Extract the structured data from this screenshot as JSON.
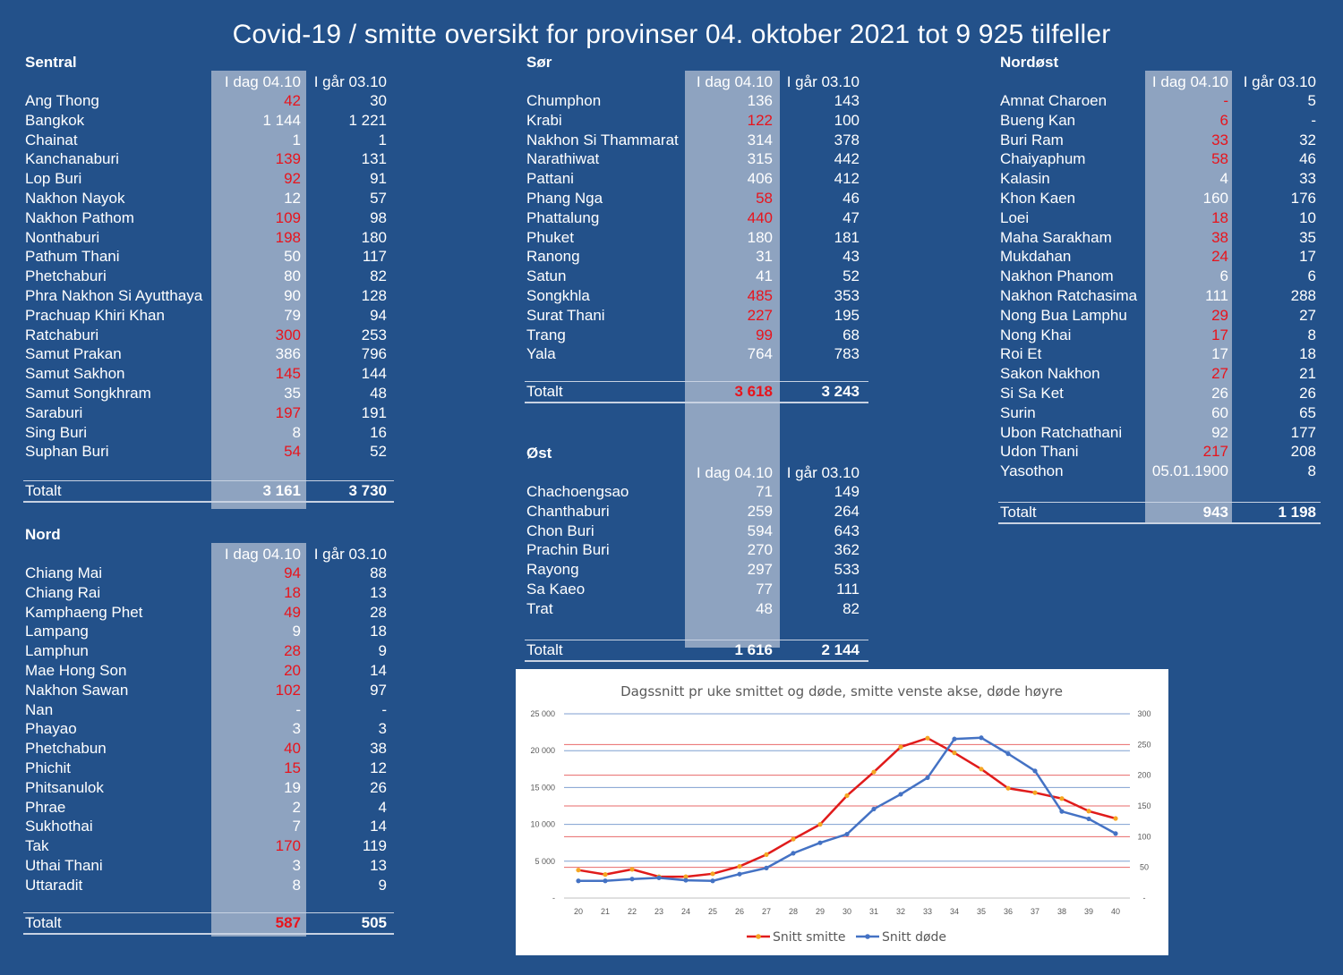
{
  "title": "Covid-19 / smitte oversikt for provinser 04. oktober 2021 tot 9 925 tilfeller",
  "columns": {
    "today": "I dag 04.10",
    "yesterday": "I går 03.10"
  },
  "total_label": "Totalt",
  "colors": {
    "background": "#23518a",
    "shade": "#8ea3c0",
    "increase": "#e8141c",
    "line_smitte": "#e01b1b",
    "line_dode": "#4472c4",
    "marker_smitte": "#f5a623"
  },
  "regions": {
    "sentral": {
      "name": "Sentral",
      "rows": [
        {
          "name": "Ang Thong",
          "today": "42",
          "yesterday": "30",
          "up": true
        },
        {
          "name": "Bangkok",
          "today": "1 144",
          "yesterday": "1 221",
          "up": false
        },
        {
          "name": "Chainat",
          "today": "1",
          "yesterday": "1",
          "up": false
        },
        {
          "name": "Kanchanaburi",
          "today": "139",
          "yesterday": "131",
          "up": true
        },
        {
          "name": "Lop Buri",
          "today": "92",
          "yesterday": "91",
          "up": true
        },
        {
          "name": "Nakhon Nayok",
          "today": "12",
          "yesterday": "57",
          "up": false
        },
        {
          "name": "Nakhon Pathom",
          "today": "109",
          "yesterday": "98",
          "up": true
        },
        {
          "name": "Nonthaburi",
          "today": "198",
          "yesterday": "180",
          "up": true
        },
        {
          "name": "Pathum Thani",
          "today": "50",
          "yesterday": "117",
          "up": false
        },
        {
          "name": "Phetchaburi",
          "today": "80",
          "yesterday": "82",
          "up": false
        },
        {
          "name": "Phra Nakhon Si Ayutthaya",
          "today": "90",
          "yesterday": "128",
          "up": false
        },
        {
          "name": "Prachuap Khiri Khan",
          "today": "79",
          "yesterday": "94",
          "up": false
        },
        {
          "name": "Ratchaburi",
          "today": "300",
          "yesterday": "253",
          "up": true
        },
        {
          "name": "Samut Prakan",
          "today": "386",
          "yesterday": "796",
          "up": false
        },
        {
          "name": "Samut Sakhon",
          "today": "145",
          "yesterday": "144",
          "up": true
        },
        {
          "name": "Samut Songkhram",
          "today": "35",
          "yesterday": "48",
          "up": false
        },
        {
          "name": "Saraburi",
          "today": "197",
          "yesterday": "191",
          "up": true
        },
        {
          "name": "Sing Buri",
          "today": "8",
          "yesterday": "16",
          "up": false
        },
        {
          "name": "Suphan Buri",
          "today": "54",
          "yesterday": "52",
          "up": true
        }
      ],
      "total": {
        "today": "3 161",
        "yesterday": "3 730",
        "up": false
      }
    },
    "nord": {
      "name": "Nord",
      "rows": [
        {
          "name": "Chiang Mai",
          "today": "94",
          "yesterday": "88",
          "up": true
        },
        {
          "name": "Chiang Rai",
          "today": "18",
          "yesterday": "13",
          "up": true
        },
        {
          "name": "Kamphaeng Phet",
          "today": "49",
          "yesterday": "28",
          "up": true
        },
        {
          "name": "Lampang",
          "today": "9",
          "yesterday": "18",
          "up": false
        },
        {
          "name": "Lamphun",
          "today": "28",
          "yesterday": "9",
          "up": true
        },
        {
          "name": "Mae Hong Son",
          "today": "20",
          "yesterday": "14",
          "up": true
        },
        {
          "name": "Nakhon Sawan",
          "today": "102",
          "yesterday": "97",
          "up": true
        },
        {
          "name": "Nan",
          "today": "-",
          "yesterday": "-",
          "up": false
        },
        {
          "name": "Phayao",
          "today": "3",
          "yesterday": "3",
          "up": false
        },
        {
          "name": "Phetchabun",
          "today": "40",
          "yesterday": "38",
          "up": true
        },
        {
          "name": "Phichit",
          "today": "15",
          "yesterday": "12",
          "up": true
        },
        {
          "name": "Phitsanulok",
          "today": "19",
          "yesterday": "26",
          "up": false
        },
        {
          "name": "Phrae",
          "today": "2",
          "yesterday": "4",
          "up": false
        },
        {
          "name": "Sukhothai",
          "today": "7",
          "yesterday": "14",
          "up": false
        },
        {
          "name": "Tak",
          "today": "170",
          "yesterday": "119",
          "up": true
        },
        {
          "name": "Uthai Thani",
          "today": "3",
          "yesterday": "13",
          "up": false
        },
        {
          "name": "Uttaradit",
          "today": "8",
          "yesterday": "9",
          "up": false
        }
      ],
      "total": {
        "today": "587",
        "yesterday": "505",
        "up": true
      }
    },
    "sor": {
      "name": "Sør",
      "rows": [
        {
          "name": "Chumphon",
          "today": "136",
          "yesterday": "143",
          "up": false
        },
        {
          "name": "Krabi",
          "today": "122",
          "yesterday": "100",
          "up": true
        },
        {
          "name": "Nakhon Si Thammarat",
          "today": "314",
          "yesterday": "378",
          "up": false
        },
        {
          "name": "Narathiwat",
          "today": "315",
          "yesterday": "442",
          "up": false
        },
        {
          "name": "Pattani",
          "today": "406",
          "yesterday": "412",
          "up": false
        },
        {
          "name": "Phang Nga",
          "today": "58",
          "yesterday": "46",
          "up": true
        },
        {
          "name": "Phattalung",
          "today": "440",
          "yesterday": "47",
          "up": true
        },
        {
          "name": "Phuket",
          "today": "180",
          "yesterday": "181",
          "up": false
        },
        {
          "name": "Ranong",
          "today": "31",
          "yesterday": "43",
          "up": false
        },
        {
          "name": "Satun",
          "today": "41",
          "yesterday": "52",
          "up": false
        },
        {
          "name": "Songkhla",
          "today": "485",
          "yesterday": "353",
          "up": true
        },
        {
          "name": "Surat Thani",
          "today": "227",
          "yesterday": "195",
          "up": true
        },
        {
          "name": "Trang",
          "today": "99",
          "yesterday": "68",
          "up": true
        },
        {
          "name": "Yala",
          "today": "764",
          "yesterday": "783",
          "up": false
        }
      ],
      "total": {
        "today": "3 618",
        "yesterday": "3 243",
        "up": true
      }
    },
    "ost": {
      "name": "Øst",
      "rows": [
        {
          "name": "Chachoengsao",
          "today": "71",
          "yesterday": "149",
          "up": false
        },
        {
          "name": "Chanthaburi",
          "today": "259",
          "yesterday": "264",
          "up": false
        },
        {
          "name": "Chon Buri",
          "today": "594",
          "yesterday": "643",
          "up": false
        },
        {
          "name": "Prachin Buri",
          "today": "270",
          "yesterday": "362",
          "up": false
        },
        {
          "name": "Rayong",
          "today": "297",
          "yesterday": "533",
          "up": false
        },
        {
          "name": "Sa Kaeo",
          "today": "77",
          "yesterday": "111",
          "up": false
        },
        {
          "name": "Trat",
          "today": "48",
          "yesterday": "82",
          "up": false
        }
      ],
      "total": {
        "today": "1 616",
        "yesterday": "2 144",
        "up": false
      }
    },
    "nordost": {
      "name": "Nordøst",
      "rows": [
        {
          "name": "Amnat Charoen",
          "today": "-",
          "yesterday": "5",
          "up": true
        },
        {
          "name": "Bueng Kan",
          "today": "6",
          "yesterday": "-",
          "up": true
        },
        {
          "name": "Buri Ram",
          "today": "33",
          "yesterday": "32",
          "up": true
        },
        {
          "name": "Chaiyaphum",
          "today": "58",
          "yesterday": "46",
          "up": true
        },
        {
          "name": "Kalasin",
          "today": "4",
          "yesterday": "33",
          "up": false
        },
        {
          "name": "Khon Kaen",
          "today": "160",
          "yesterday": "176",
          "up": false
        },
        {
          "name": "Loei",
          "today": "18",
          "yesterday": "10",
          "up": true
        },
        {
          "name": "Maha Sarakham",
          "today": "38",
          "yesterday": "35",
          "up": true
        },
        {
          "name": "Mukdahan",
          "today": "24",
          "yesterday": "17",
          "up": true
        },
        {
          "name": "Nakhon Phanom",
          "today": "6",
          "yesterday": "6",
          "up": false
        },
        {
          "name": "Nakhon Ratchasima",
          "today": "111",
          "yesterday": "288",
          "up": false
        },
        {
          "name": "Nong Bua Lamphu",
          "today": "29",
          "yesterday": "27",
          "up": true
        },
        {
          "name": "Nong Khai",
          "today": "17",
          "yesterday": "8",
          "up": true
        },
        {
          "name": "Roi Et",
          "today": "17",
          "yesterday": "18",
          "up": false
        },
        {
          "name": "Sakon Nakhon",
          "today": "27",
          "yesterday": "21",
          "up": true
        },
        {
          "name": "Si Sa Ket",
          "today": "26",
          "yesterday": "26",
          "up": false
        },
        {
          "name": "Surin",
          "today": "60",
          "yesterday": "65",
          "up": false
        },
        {
          "name": "Ubon Ratchathani",
          "today": "92",
          "yesterday": "177",
          "up": false
        },
        {
          "name": "Udon Thani",
          "today": "217",
          "yesterday": "208",
          "up": true
        },
        {
          "name": "Yasothon",
          "today": "05.01.1900",
          "yesterday": "8",
          "up": false
        }
      ],
      "total": {
        "today": "943",
        "yesterday": "1 198",
        "up": false
      }
    }
  },
  "chart_data": {
    "type": "line",
    "title": "Dagssnitt pr uke smittet og døde, smitte venste akse, døde høyre",
    "categories": [
      "20",
      "21",
      "22",
      "23",
      "24",
      "25",
      "26",
      "27",
      "28",
      "29",
      "30",
      "31",
      "32",
      "33",
      "34",
      "35",
      "36",
      "37",
      "38",
      "39",
      "40"
    ],
    "ylim_left": [
      0,
      25000
    ],
    "yticks_left": [
      "-",
      "5 000",
      "10 000",
      "15 000",
      "20 000",
      "25 000"
    ],
    "ylim_right": [
      0,
      300
    ],
    "yticks_right": [
      "-",
      "50",
      "100",
      "150",
      "200",
      "250",
      "300"
    ],
    "series": [
      {
        "name": "Snitt smitte",
        "axis": "left",
        "values": [
          3800,
          3200,
          3900,
          2900,
          2900,
          3300,
          4300,
          5900,
          8000,
          10000,
          13900,
          17100,
          20500,
          21700,
          19700,
          17500,
          14900,
          14300,
          13500,
          11800,
          10800
        ]
      },
      {
        "name": "Snitt døde",
        "axis": "right",
        "values": [
          28,
          28,
          31,
          33,
          29,
          28,
          39,
          49,
          73,
          90,
          104,
          145,
          169,
          196,
          259,
          261,
          235,
          207,
          141,
          129,
          105
        ]
      }
    ],
    "grid": "horizontal",
    "legend": "bottom"
  }
}
